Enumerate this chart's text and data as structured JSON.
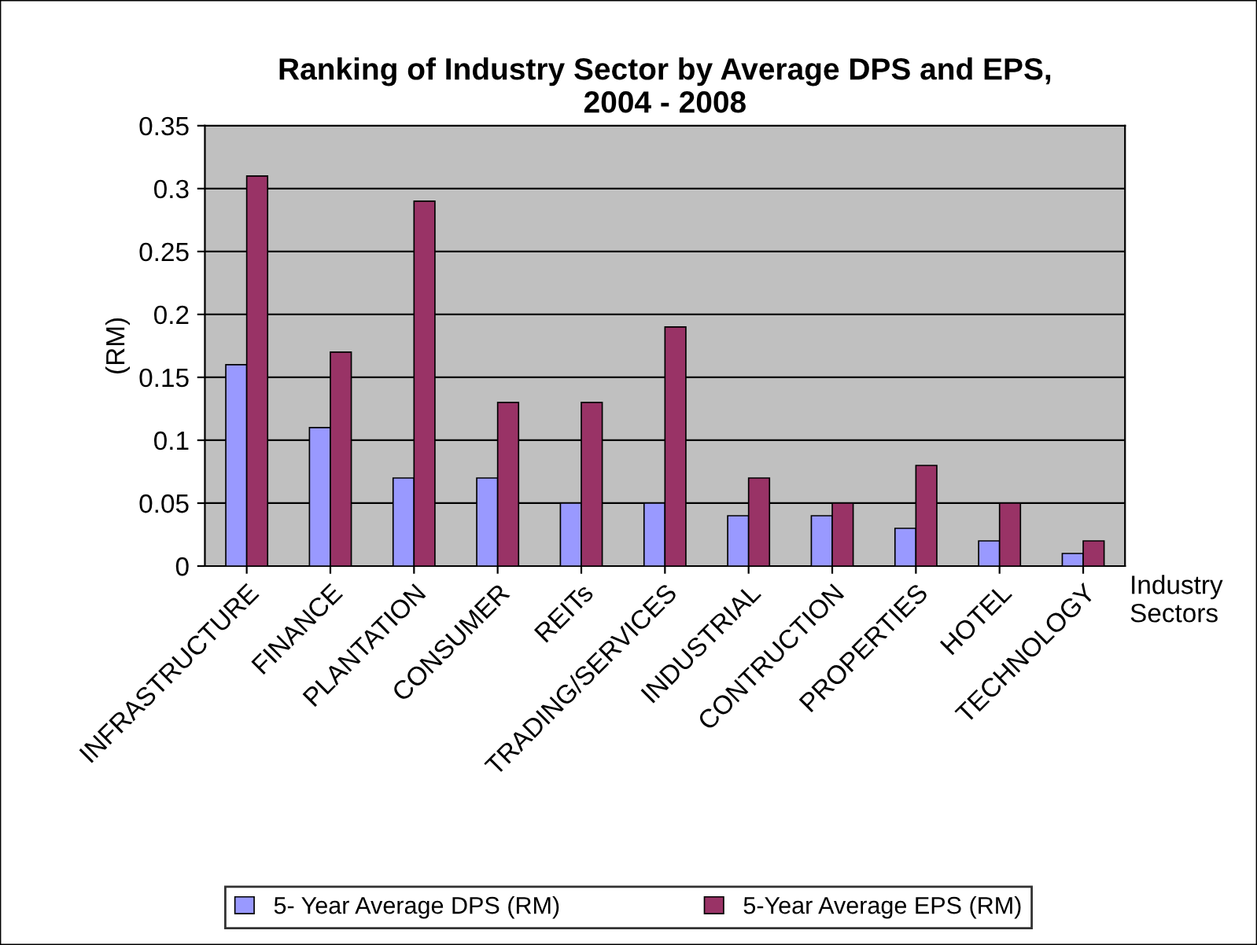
{
  "chart_data": {
    "type": "bar",
    "title": "Ranking of Industry Sector by Average DPS and EPS,\n2004 - 2008",
    "xlabel": "Industry\nSectors",
    "ylabel": "(RM)",
    "categories": [
      "INFRASTRUCTURE",
      "FINANCE",
      "PLANTATION",
      "CONSUMER",
      "REITs",
      "TRADING/SERVICES",
      "INDUSTRIAL",
      "CONTRUCTION",
      "PROPERTIES",
      "HOTEL",
      "TECHNOLOGY"
    ],
    "series": [
      {
        "name": "5- Year Average DPS (RM)",
        "color": "#9999ff",
        "values": [
          0.16,
          0.11,
          0.07,
          0.07,
          0.05,
          0.05,
          0.04,
          0.04,
          0.03,
          0.02,
          0.01
        ]
      },
      {
        "name": "5-Year Average EPS (RM)",
        "color": "#993366",
        "values": [
          0.31,
          0.17,
          0.29,
          0.13,
          0.13,
          0.19,
          0.07,
          0.05,
          0.08,
          0.05,
          0.02
        ]
      }
    ],
    "ylim": [
      0,
      0.35
    ],
    "yticks": [
      0,
      0.05,
      0.1,
      0.15,
      0.2,
      0.25,
      0.3,
      0.35
    ],
    "grid": "y",
    "legend": "bottom"
  }
}
